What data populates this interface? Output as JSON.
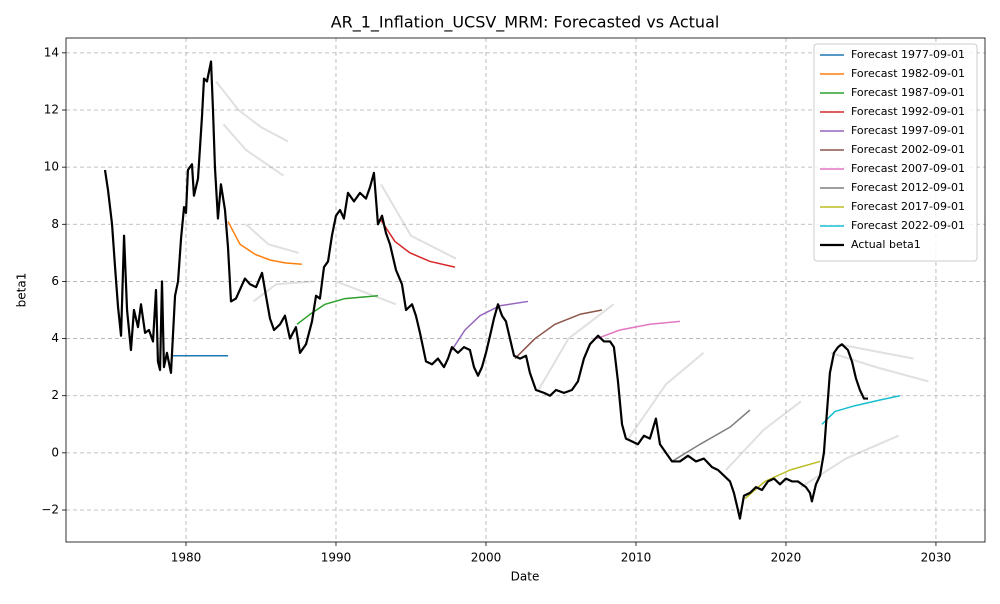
{
  "chart_data": {
    "type": "line",
    "title": "AR_1_Inflation_UCSV_MRM: Forecasted vs Actual",
    "xlabel": "Date",
    "ylabel": "beta1",
    "xlim": [
      1972.0,
      2033.27
    ],
    "ylim": [
      -3.12,
      14.52
    ],
    "xticks": [
      1980,
      1990,
      2000,
      2010,
      2020,
      2030
    ],
    "yticks": [
      {
        "value": -2,
        "label": "−2"
      },
      0,
      2,
      4,
      6,
      8,
      10,
      12,
      14
    ],
    "grid": true,
    "legend": "upper right",
    "series": [
      {
        "color": "#999999",
        "alpha": 0.3,
        "linewidth": 2,
        "x": [
          1982.0,
          1983.5,
          1985.0,
          1986.8
        ],
        "values": [
          13.0,
          12.0,
          11.4,
          10.9
        ]
      },
      {
        "color": "#999999",
        "alpha": 0.3,
        "linewidth": 2,
        "x": [
          1982.5,
          1984.0,
          1986.5
        ],
        "values": [
          11.5,
          10.6,
          9.7
        ]
      },
      {
        "color": "#999999",
        "alpha": 0.3,
        "linewidth": 2,
        "x": [
          1984.0,
          1985.5,
          1987.5
        ],
        "values": [
          8.0,
          7.3,
          7.0
        ]
      },
      {
        "color": "#999999",
        "alpha": 0.3,
        "linewidth": 2,
        "x": [
          1984.5,
          1986.0,
          1988.5
        ],
        "values": [
          5.3,
          5.9,
          6.0
        ]
      },
      {
        "color": "#999999",
        "alpha": 0.3,
        "linewidth": 2,
        "x": [
          1993.0,
          1995.0,
          1998.0
        ],
        "values": [
          9.4,
          7.6,
          6.8
        ]
      },
      {
        "color": "#999999",
        "alpha": 0.3,
        "linewidth": 2,
        "x": [
          1990.0,
          1992.0,
          1994.0
        ],
        "values": [
          6.0,
          5.6,
          5.2
        ]
      },
      {
        "color": "#999999",
        "alpha": 0.3,
        "linewidth": 2,
        "x": [
          2003.5,
          2005.5,
          2008.5
        ],
        "values": [
          2.2,
          4.0,
          5.2
        ]
      },
      {
        "color": "#999999",
        "alpha": 0.3,
        "linewidth": 2,
        "x": [
          2009.5,
          2012.0,
          2014.5
        ],
        "values": [
          0.5,
          2.4,
          3.5
        ]
      },
      {
        "color": "#999999",
        "alpha": 0.3,
        "linewidth": 2,
        "x": [
          2023.5,
          2025.5,
          2028.5
        ],
        "values": [
          3.8,
          3.6,
          3.3
        ]
      },
      {
        "color": "#999999",
        "alpha": 0.3,
        "linewidth": 2,
        "x": [
          2023.0,
          2026.0,
          2029.5
        ],
        "values": [
          3.5,
          3.0,
          2.5
        ]
      },
      {
        "color": "#999999",
        "alpha": 0.3,
        "linewidth": 2,
        "x": [
          2021.0,
          2024.0,
          2027.5
        ],
        "values": [
          -1.2,
          -0.2,
          0.6
        ]
      },
      {
        "color": "#999999",
        "alpha": 0.3,
        "linewidth": 2,
        "x": [
          2016.0,
          2018.5,
          2021.0
        ],
        "values": [
          -0.6,
          0.8,
          1.8
        ]
      },
      {
        "name": "Forecast 1977-09-01",
        "color": "#1f77b4",
        "alpha": 1,
        "linewidth": 1.5,
        "x": [
          1979.07,
          1982.8
        ],
        "values": [
          3.4,
          3.4
        ]
      },
      {
        "name": "Forecast 1982-09-01",
        "color": "#ff7f0e",
        "alpha": 1,
        "linewidth": 1.5,
        "x": [
          1982.8,
          1983.6,
          1984.6,
          1985.6,
          1986.6,
          1987.73
        ],
        "values": [
          8.1,
          7.3,
          6.95,
          6.75,
          6.65,
          6.6
        ]
      },
      {
        "name": "Forecast 1987-09-01",
        "color": "#2ca02c",
        "alpha": 1,
        "linewidth": 1.5,
        "x": [
          1987.4,
          1988.27,
          1989.27,
          1990.6,
          1992.8
        ],
        "values": [
          4.5,
          4.85,
          5.2,
          5.4,
          5.5
        ]
      },
      {
        "name": "Forecast 1992-09-01",
        "color": "#d62728",
        "alpha": 1,
        "linewidth": 1.5,
        "x": [
          1992.93,
          1993.93,
          1994.93,
          1996.27,
          1997.93
        ],
        "values": [
          8.2,
          7.4,
          7.0,
          6.7,
          6.5
        ]
      },
      {
        "name": "Forecast 1997-09-01",
        "color": "#9467bd",
        "alpha": 1,
        "linewidth": 1.5,
        "x": [
          1997.6,
          1998.6,
          1999.6,
          2000.93,
          2002.8
        ],
        "values": [
          3.5,
          4.3,
          4.8,
          5.15,
          5.3
        ]
      },
      {
        "name": "Forecast 2002-09-01",
        "color": "#8c564b",
        "alpha": 1,
        "linewidth": 1.5,
        "x": [
          2001.93,
          2003.27,
          2004.6,
          2006.27,
          2007.73
        ],
        "values": [
          3.3,
          4.0,
          4.5,
          4.85,
          5.0
        ]
      },
      {
        "name": "Forecast 2007-09-01",
        "color": "#e377c2",
        "alpha": 1,
        "linewidth": 1.5,
        "x": [
          2007.4,
          2008.93,
          2010.93,
          2012.93
        ],
        "values": [
          4.0,
          4.3,
          4.5,
          4.6
        ]
      },
      {
        "name": "Forecast 2012-09-01",
        "color": "#7f7f7f",
        "alpha": 1,
        "linewidth": 1.5,
        "x": [
          2012.4,
          2014.27,
          2016.27,
          2017.6
        ],
        "values": [
          -0.3,
          0.3,
          0.9,
          1.5
        ]
      },
      {
        "name": "Forecast 2017-09-01",
        "color": "#bcbd22",
        "alpha": 1,
        "linewidth": 1.5,
        "x": [
          2017.27,
          2018.6,
          2020.27,
          2022.27
        ],
        "values": [
          -1.6,
          -1.0,
          -0.6,
          -0.3
        ]
      },
      {
        "name": "Forecast 2022-09-01",
        "color": "#17becf",
        "alpha": 1,
        "linewidth": 1.5,
        "x": [
          2022.4,
          2023.27,
          2024.6,
          2026.27,
          2027.6
        ],
        "values": [
          1.0,
          1.45,
          1.65,
          1.85,
          2.0
        ]
      },
      {
        "name": "Actual beta1",
        "color": "#000000",
        "alpha": 1,
        "linewidth": 2.2,
        "x": [
          1974.6,
          1974.8,
          1975.07,
          1975.27,
          1975.47,
          1975.67,
          1975.87,
          1976.07,
          1976.2,
          1976.33,
          1976.53,
          1976.8,
          1977.0,
          1977.27,
          1977.53,
          1977.8,
          1978.0,
          1978.13,
          1978.27,
          1978.4,
          1978.53,
          1978.73,
          1979.0,
          1979.27,
          1979.47,
          1979.67,
          1979.87,
          1980.0,
          1980.13,
          1980.4,
          1980.53,
          1980.8,
          1981.07,
          1981.2,
          1981.4,
          1981.67,
          1981.8,
          1981.93,
          1982.13,
          1982.33,
          1982.6,
          1982.8,
          1983.0,
          1983.33,
          1983.67,
          1983.93,
          1984.27,
          1984.67,
          1985.07,
          1985.33,
          1985.6,
          1985.87,
          1986.27,
          1986.6,
          1986.93,
          1987.33,
          1987.6,
          1988.0,
          1988.4,
          1988.67,
          1988.93,
          1989.2,
          1989.47,
          1989.73,
          1990.0,
          1990.27,
          1990.53,
          1990.8,
          1991.2,
          1991.6,
          1992.0,
          1992.27,
          1992.53,
          1992.8,
          1993.07,
          1993.33,
          1993.6,
          1994.0,
          1994.4,
          1994.67,
          1995.07,
          1995.33,
          1995.6,
          1996.0,
          1996.4,
          1996.8,
          1997.2,
          1997.47,
          1997.73,
          1998.13,
          1998.53,
          1998.93,
          1999.2,
          1999.47,
          1999.73,
          2000.0,
          2000.27,
          2000.53,
          2000.8,
          2001.07,
          2001.33,
          2001.6,
          2001.87,
          2002.27,
          2002.67,
          2002.93,
          2003.33,
          2003.87,
          2004.27,
          2004.67,
          2005.2,
          2005.73,
          2006.13,
          2006.53,
          2006.93,
          2007.47,
          2007.87,
          2008.27,
          2008.53,
          2008.8,
          2009.07,
          2009.33,
          2009.73,
          2010.13,
          2010.53,
          2010.93,
          2011.33,
          2011.6,
          2012.0,
          2012.4,
          2012.93,
          2013.47,
          2014.0,
          2014.53,
          2015.07,
          2015.47,
          2015.87,
          2016.27,
          2016.53,
          2016.8,
          2016.93,
          2017.2,
          2017.6,
          2018.0,
          2018.4,
          2018.8,
          2019.2,
          2019.6,
          2020.0,
          2020.4,
          2020.8,
          2021.33,
          2021.6,
          2021.73,
          2022.0,
          2022.27,
          2022.53,
          2022.67,
          2022.93,
          2023.2,
          2023.47,
          2023.73,
          2024.13,
          2024.4,
          2024.67,
          2024.93,
          2025.2,
          2025.47
        ],
        "values": [
          9.9,
          9.2,
          8.0,
          6.5,
          5.1,
          4.1,
          7.6,
          5.0,
          4.3,
          3.6,
          5.0,
          4.4,
          5.2,
          4.2,
          4.3,
          3.9,
          5.7,
          3.2,
          2.9,
          6.0,
          3.0,
          3.5,
          2.8,
          5.5,
          6.0,
          7.5,
          8.6,
          8.4,
          9.9,
          10.1,
          9.0,
          9.6,
          11.8,
          13.1,
          13.0,
          13.7,
          12.0,
          10.0,
          8.2,
          9.4,
          8.5,
          7.2,
          5.3,
          5.4,
          5.8,
          6.1,
          5.9,
          5.8,
          6.3,
          5.5,
          4.7,
          4.3,
          4.5,
          4.8,
          4.0,
          4.4,
          3.5,
          3.8,
          4.6,
          5.5,
          5.4,
          6.5,
          6.7,
          7.6,
          8.3,
          8.5,
          8.2,
          9.1,
          8.8,
          9.1,
          8.9,
          9.3,
          9.8,
          8.0,
          8.3,
          7.7,
          7.3,
          6.4,
          5.9,
          5.0,
          5.2,
          4.8,
          4.2,
          3.2,
          3.1,
          3.3,
          3.0,
          3.3,
          3.7,
          3.5,
          3.7,
          3.6,
          3.0,
          2.7,
          3.0,
          3.5,
          4.1,
          4.7,
          5.2,
          4.8,
          4.6,
          4.0,
          3.4,
          3.3,
          3.4,
          2.8,
          2.2,
          2.1,
          2.0,
          2.2,
          2.1,
          2.2,
          2.5,
          3.3,
          3.8,
          4.1,
          3.9,
          3.9,
          3.7,
          2.5,
          1.0,
          0.5,
          0.4,
          0.3,
          0.6,
          0.5,
          1.2,
          0.3,
          0.0,
          -0.3,
          -0.3,
          -0.1,
          -0.3,
          -0.2,
          -0.5,
          -0.6,
          -0.8,
          -1.0,
          -1.4,
          -2.0,
          -2.3,
          -1.5,
          -1.4,
          -1.2,
          -1.3,
          -1.0,
          -0.9,
          -1.1,
          -0.9,
          -1.0,
          -1.0,
          -1.2,
          -1.4,
          -1.7,
          -1.1,
          -0.8,
          0.0,
          1.0,
          2.8,
          3.5,
          3.7,
          3.8,
          3.6,
          3.2,
          2.6,
          2.2,
          1.9,
          1.9
        ]
      }
    ]
  }
}
